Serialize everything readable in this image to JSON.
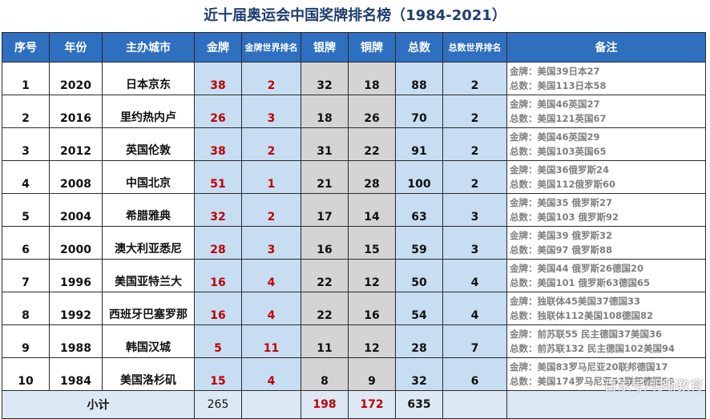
{
  "title": "近十届奥运会中国奖牌排名榜（1984-2021）",
  "headers": {
    "index": "序号",
    "year": "年份",
    "city": "主办城市",
    "gold": "金牌",
    "gold_rank": "金牌世界排名",
    "silver": "银牌",
    "bronze": "铜牌",
    "total": "总数",
    "total_rank": "总数世界排名",
    "notes": "备注"
  },
  "rows": [
    {
      "index": "1",
      "year": "2020",
      "city": "日本京东",
      "gold": "38",
      "gold_rank": "2",
      "silver": "32",
      "bronze": "18",
      "total": "88",
      "total_rank": "2",
      "note_gold": "金牌：美国39日本27",
      "note_total": "总数：美国113日本58"
    },
    {
      "index": "2",
      "year": "2016",
      "city": "里约热内卢",
      "gold": "26",
      "gold_rank": "3",
      "silver": "18",
      "bronze": "26",
      "total": "70",
      "total_rank": "2",
      "note_gold": "金牌：美国46英国27",
      "note_total": "总数：美国121英国67"
    },
    {
      "index": "3",
      "year": "2012",
      "city": "英国伦敦",
      "gold": "38",
      "gold_rank": "2",
      "silver": "31",
      "bronze": "22",
      "total": "91",
      "total_rank": "2",
      "note_gold": "金牌：美国46英国29",
      "note_total": "总数：美国103英国65"
    },
    {
      "index": "4",
      "year": "2008",
      "city": "中国北京",
      "gold": "51",
      "gold_rank": "1",
      "silver": "21",
      "bronze": "28",
      "total": "100",
      "total_rank": "2",
      "note_gold": "金牌：美国36俄罗斯24",
      "note_total": "总数：美国112俄罗斯60"
    },
    {
      "index": "5",
      "year": "2004",
      "city": "希腊雅典",
      "gold": "32",
      "gold_rank": "2",
      "silver": "17",
      "bronze": "14",
      "total": "63",
      "total_rank": "3",
      "note_gold": "金牌：美国35 俄罗斯27",
      "note_total": "总数：美国103 俄罗斯92"
    },
    {
      "index": "6",
      "year": "2000",
      "city": "澳大利亚悉尼",
      "gold": "28",
      "gold_rank": "3",
      "silver": "16",
      "bronze": "15",
      "total": "59",
      "total_rank": "3",
      "note_gold": "金牌：美国39 俄罗斯32",
      "note_total": "总数：美国97 俄罗斯88"
    },
    {
      "index": "7",
      "year": "1996",
      "city": "美国亚特兰大",
      "gold": "16",
      "gold_rank": "4",
      "silver": "22",
      "bronze": "12",
      "total": "50",
      "total_rank": "4",
      "note_gold": "金牌：美国44 俄罗斯26德国20",
      "note_total": "总数：美国101 俄罗斯63德国65"
    },
    {
      "index": "8",
      "year": "1992",
      "city": "西班牙巴塞罗那",
      "gold": "16",
      "gold_rank": "4",
      "silver": "22",
      "bronze": "16",
      "total": "54",
      "total_rank": "4",
      "note_gold": "金牌：独联体45美国37德国33",
      "note_total": "总数：独联体112美国108德国82"
    },
    {
      "index": "9",
      "year": "1988",
      "city": "韩国汉城",
      "gold": "5",
      "gold_rank": "11",
      "silver": "11",
      "bronze": "12",
      "total": "28",
      "total_rank": "7",
      "note_gold": "金牌：前苏联55 民主德国37美国36",
      "note_total": "总数：前苏联132 民主德国102美国94"
    },
    {
      "index": "10",
      "year": "1984",
      "city": "美国洛杉矶",
      "gold": "15",
      "gold_rank": "4",
      "silver": "8",
      "bronze": "9",
      "total": "32",
      "total_rank": "6",
      "note_gold": "金牌：美国83罗马尼亚20联邦德国17",
      "note_total": "总数：美国174罗马尼亚53联邦德国59"
    }
  ],
  "summary": {
    "label": "小计",
    "gold": "265",
    "silver": "198",
    "bronze": "172",
    "total": "635"
  },
  "watermark": "百家号/明晰教育"
}
